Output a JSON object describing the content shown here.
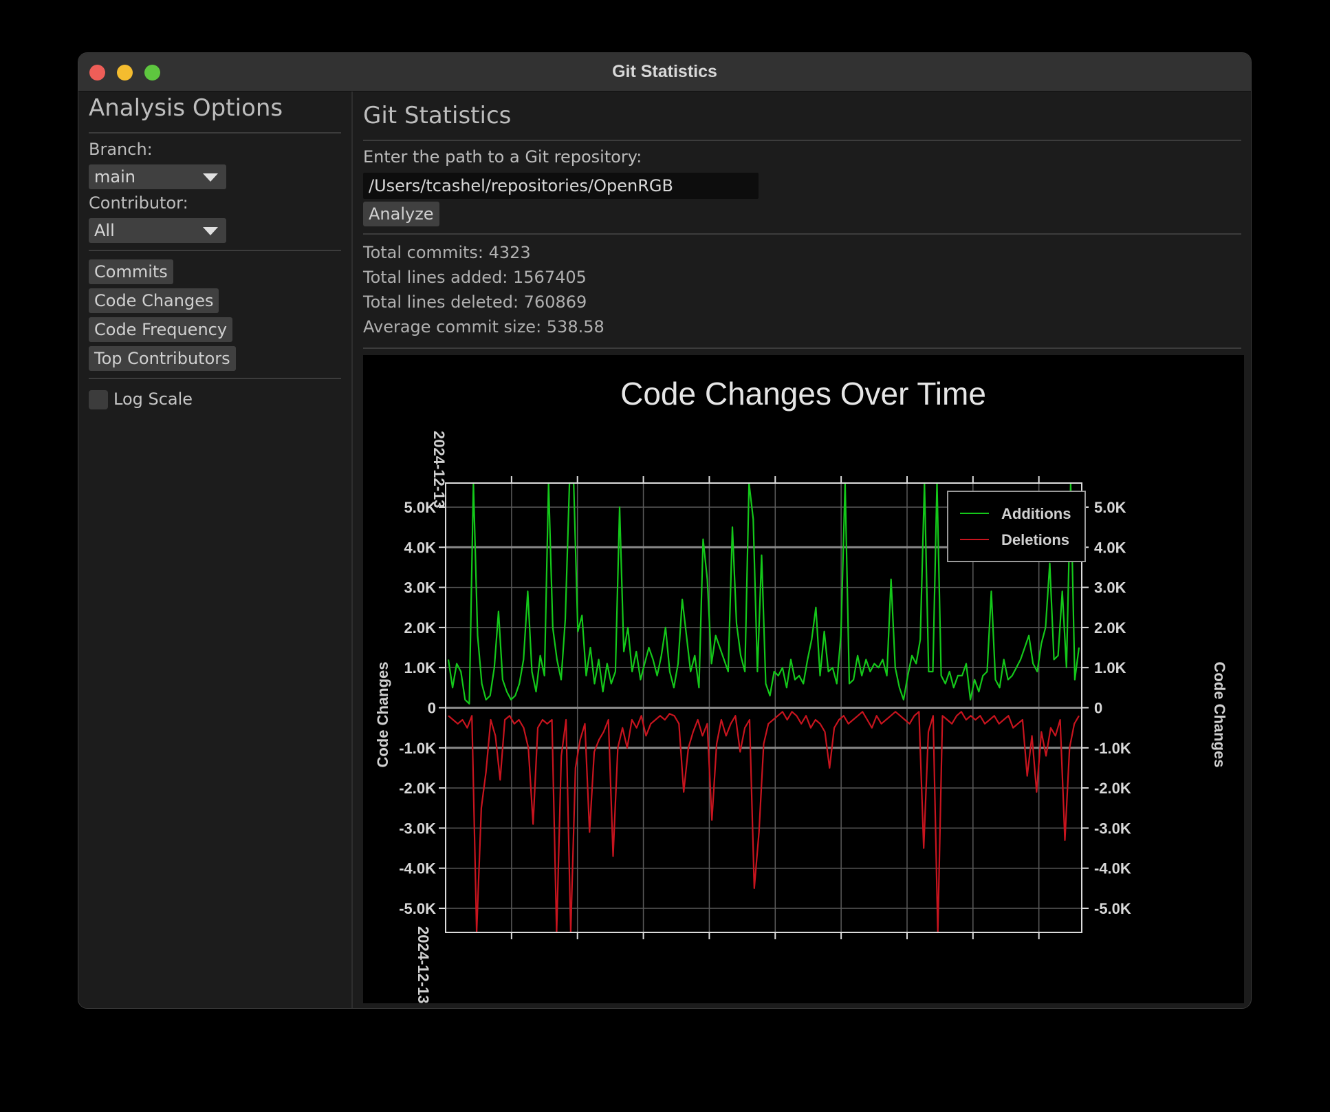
{
  "window": {
    "title": "Git Statistics"
  },
  "sidebar": {
    "title": "Analysis Options",
    "branch_label": "Branch:",
    "branch_value": "main",
    "contributor_label": "Contributor:",
    "contributor_value": "All",
    "buttons": [
      "Commits",
      "Code Changes",
      "Code Frequency",
      "Top Contributors"
    ],
    "log_scale_label": "Log Scale",
    "log_scale_checked": false
  },
  "main": {
    "title": "Git Statistics",
    "repo_prompt": "Enter the path to a Git repository:",
    "repo_path": "/Users/tcashel/repositories/OpenRGB",
    "analyze_label": "Analyze",
    "stats": {
      "total_commits": "Total commits: 4323",
      "lines_added": "Total lines added: 1567405",
      "lines_deleted": "Total lines deleted: 760869",
      "avg_commit_size": "Average commit size: 538.58"
    }
  },
  "colors": {
    "additions": "#14c81a",
    "deletions": "#c8141e"
  },
  "chart_data": {
    "type": "line",
    "title": "Code Changes Over Time",
    "ylabel": "Code Changes",
    "ylabel_right": "Code Changes",
    "x_tick_top": "2024-12-13",
    "x_tick_bottom": "2024-12-13",
    "ylim": [
      -5600,
      5600
    ],
    "y_ticks": [
      "5.0K",
      "4.0K",
      "3.0K",
      "2.0K",
      "1.0K",
      "0",
      "-1.0K",
      "-2.0K",
      "-3.0K",
      "-4.0K",
      "-5.0K"
    ],
    "legend_position": "top-right",
    "series": [
      {
        "name": "Additions",
        "values": [
          1200,
          500,
          1100,
          900,
          200,
          100,
          5600,
          1800,
          600,
          200,
          300,
          1000,
          2400,
          700,
          400,
          200,
          300,
          600,
          1200,
          2900,
          900,
          400,
          1300,
          800,
          5600,
          2000,
          1200,
          700,
          2200,
          5600,
          5600,
          1900,
          2300,
          800,
          1500,
          600,
          1200,
          400,
          1100,
          600,
          900,
          5000,
          1400,
          2000,
          900,
          1400,
          700,
          1100,
          1500,
          1200,
          800,
          1300,
          2000,
          900,
          500,
          1100,
          2700,
          1800,
          900,
          1300,
          500,
          4200,
          3200,
          1100,
          1800,
          1500,
          1200,
          900,
          4500,
          2100,
          1300,
          900,
          5600,
          4700,
          900,
          3800,
          600,
          300,
          900,
          800,
          1000,
          500,
          1200,
          700,
          800,
          600,
          1200,
          1700,
          2500,
          800,
          1900,
          900,
          1000,
          600,
          1800,
          5600,
          600,
          700,
          1300,
          800,
          1200,
          900,
          1100,
          1000,
          1200,
          800,
          3200,
          1000,
          500,
          200,
          800,
          1300,
          1100,
          1700,
          5600,
          900,
          900,
          5600,
          800,
          600,
          900,
          500,
          800,
          800,
          1100,
          200,
          700,
          400,
          800,
          900,
          2900,
          700,
          500,
          1200,
          700,
          800,
          1000,
          1200,
          1500,
          1800,
          1100,
          900,
          1600,
          2000,
          3600,
          1200,
          1300,
          2900,
          1000,
          5600,
          700,
          1500
        ]
      },
      {
        "name": "Deletions",
        "values": [
          -200,
          -300,
          -400,
          -300,
          -500,
          -200,
          -5600,
          -2500,
          -1600,
          -300,
          -700,
          -1800,
          -300,
          -200,
          -400,
          -300,
          -500,
          -1000,
          -2900,
          -500,
          -300,
          -400,
          -300,
          -5600,
          -1200,
          -300,
          -5600,
          -1500,
          -800,
          -400,
          -3100,
          -1100,
          -800,
          -600,
          -300,
          -3700,
          -1000,
          -500,
          -1000,
          -300,
          -500,
          -200,
          -700,
          -400,
          -300,
          -200,
          -300,
          -150,
          -200,
          -400,
          -2100,
          -1000,
          -600,
          -300,
          -700,
          -400,
          -2800,
          -900,
          -300,
          -700,
          -400,
          -200,
          -1100,
          -500,
          -300,
          -4500,
          -3100,
          -900,
          -400,
          -300,
          -200,
          -100,
          -300,
          -100,
          -200,
          -400,
          -200,
          -500,
          -300,
          -400,
          -600,
          -1500,
          -500,
          -300,
          -200,
          -400,
          -300,
          -200,
          -100,
          -300,
          -500,
          -200,
          -400,
          -300,
          -200,
          -100,
          -200,
          -300,
          -400,
          -200,
          -100,
          -3500,
          -600,
          -200,
          -5600,
          -200,
          -300,
          -400,
          -200,
          -100,
          -300,
          -200,
          -300,
          -200,
          -400,
          -300,
          -200,
          -400,
          -300,
          -200,
          -500,
          -400,
          -300,
          -1700,
          -700,
          -2100,
          -600,
          -1200,
          -500,
          -700,
          -300,
          -3300,
          -1000,
          -400,
          -200
        ]
      }
    ]
  }
}
